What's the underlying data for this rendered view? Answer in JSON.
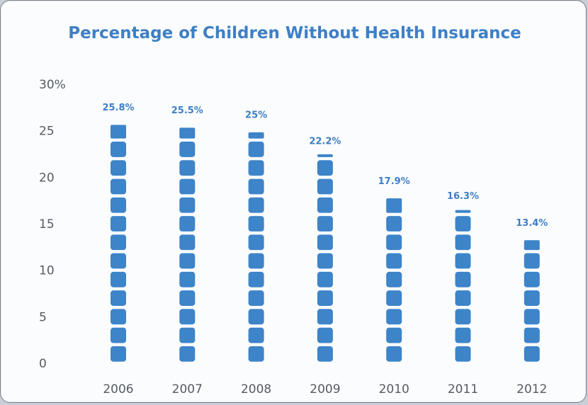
{
  "chart_data": {
    "type": "bar",
    "title": "Percentage of Children Without Health Insurance",
    "categories": [
      "2006",
      "2007",
      "2008",
      "2009",
      "2010",
      "2011",
      "2012"
    ],
    "values": [
      25.8,
      25.5,
      25,
      22.2,
      17.9,
      16.3,
      13.4
    ],
    "data_labels": [
      "25.8%",
      "25.5%",
      "25%",
      "22.2%",
      "17.9%",
      "16.3%",
      "13.4%"
    ],
    "y_ticks": [
      "0",
      "5",
      "10",
      "15",
      "20",
      "25",
      "30%"
    ],
    "ylim": [
      0,
      30
    ],
    "grid": false,
    "bar_style": "stacked rounded blocks, 2 units per block",
    "colors": {
      "bar": "#3d84c9",
      "title": "#3d7fc5",
      "label": "#3d7fc5"
    }
  }
}
